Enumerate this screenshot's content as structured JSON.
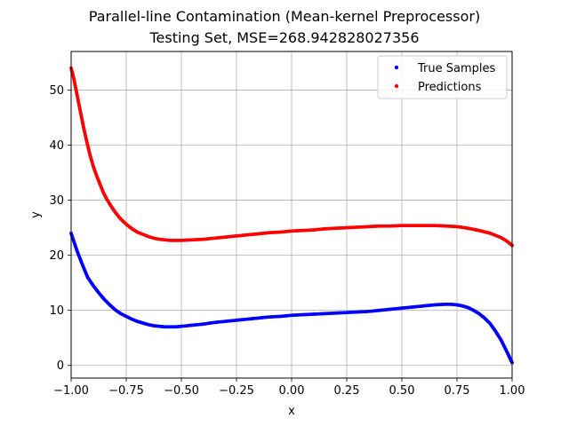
{
  "chart_data": {
    "type": "scatter",
    "title": "Parallel-line Contamination (Mean-kernel Preprocessor)",
    "subtitle": "Testing Set, MSE=268.942828027356",
    "xlabel": "x",
    "ylabel": "y",
    "xlim": [
      -1.0,
      1.0
    ],
    "ylim": [
      -2.3,
      57.0
    ],
    "xticks": [
      "−1.00",
      "−0.75",
      "−0.50",
      "−0.25",
      "0.00",
      "0.25",
      "0.50",
      "0.75",
      "1.00"
    ],
    "xtick_values": [
      -1.0,
      -0.75,
      -0.5,
      -0.25,
      0.0,
      0.25,
      0.5,
      0.75,
      1.0
    ],
    "yticks": [
      "0",
      "10",
      "20",
      "30",
      "40",
      "50"
    ],
    "ytick_values": [
      0,
      10,
      20,
      30,
      40,
      50
    ],
    "grid": true,
    "legend_position": "top-right",
    "series": [
      {
        "name": "True Samples",
        "color": "#0000ff",
        "points": [
          [
            -1.0,
            24.0
          ],
          [
            -0.975,
            21.0
          ],
          [
            -0.95,
            18.4
          ],
          [
            -0.925,
            16.0
          ],
          [
            -0.9,
            14.5
          ],
          [
            -0.875,
            13.2
          ],
          [
            -0.85,
            12.0
          ],
          [
            -0.825,
            11.0
          ],
          [
            -0.8,
            10.1
          ],
          [
            -0.775,
            9.4
          ],
          [
            -0.75,
            8.9
          ],
          [
            -0.725,
            8.4
          ],
          [
            -0.7,
            8.0
          ],
          [
            -0.675,
            7.7
          ],
          [
            -0.65,
            7.4
          ],
          [
            -0.625,
            7.2
          ],
          [
            -0.6,
            7.1
          ],
          [
            -0.575,
            7.0
          ],
          [
            -0.55,
            7.0
          ],
          [
            -0.525,
            7.0
          ],
          [
            -0.5,
            7.1
          ],
          [
            -0.45,
            7.3
          ],
          [
            -0.4,
            7.5
          ],
          [
            -0.35,
            7.8
          ],
          [
            -0.3,
            8.0
          ],
          [
            -0.25,
            8.2
          ],
          [
            -0.2,
            8.4
          ],
          [
            -0.15,
            8.6
          ],
          [
            -0.1,
            8.8
          ],
          [
            -0.05,
            8.9
          ],
          [
            0.0,
            9.1
          ],
          [
            0.05,
            9.2
          ],
          [
            0.1,
            9.3
          ],
          [
            0.15,
            9.4
          ],
          [
            0.2,
            9.5
          ],
          [
            0.25,
            9.6
          ],
          [
            0.3,
            9.7
          ],
          [
            0.35,
            9.8
          ],
          [
            0.4,
            10.0
          ],
          [
            0.45,
            10.2
          ],
          [
            0.5,
            10.4
          ],
          [
            0.55,
            10.6
          ],
          [
            0.6,
            10.8
          ],
          [
            0.65,
            11.0
          ],
          [
            0.7,
            11.1
          ],
          [
            0.725,
            11.1
          ],
          [
            0.75,
            11.0
          ],
          [
            0.775,
            10.8
          ],
          [
            0.8,
            10.5
          ],
          [
            0.825,
            10.0
          ],
          [
            0.85,
            9.4
          ],
          [
            0.875,
            8.6
          ],
          [
            0.9,
            7.6
          ],
          [
            0.925,
            6.2
          ],
          [
            0.95,
            4.6
          ],
          [
            0.975,
            2.6
          ],
          [
            1.0,
            0.5
          ]
        ]
      },
      {
        "name": "Predictions",
        "color": "#ff0000",
        "points": [
          [
            -1.0,
            54.0
          ],
          [
            -0.99,
            52.5
          ],
          [
            -0.975,
            49.5
          ],
          [
            -0.96,
            46.5
          ],
          [
            -0.945,
            43.5
          ],
          [
            -0.93,
            40.8
          ],
          [
            -0.915,
            38.3
          ],
          [
            -0.9,
            36.2
          ],
          [
            -0.885,
            34.5
          ],
          [
            -0.87,
            33.0
          ],
          [
            -0.855,
            31.5
          ],
          [
            -0.84,
            30.3
          ],
          [
            -0.82,
            29.0
          ],
          [
            -0.8,
            27.8
          ],
          [
            -0.78,
            26.8
          ],
          [
            -0.76,
            26.0
          ],
          [
            -0.74,
            25.3
          ],
          [
            -0.72,
            24.7
          ],
          [
            -0.7,
            24.2
          ],
          [
            -0.675,
            23.8
          ],
          [
            -0.65,
            23.4
          ],
          [
            -0.625,
            23.1
          ],
          [
            -0.6,
            22.9
          ],
          [
            -0.575,
            22.8
          ],
          [
            -0.55,
            22.7
          ],
          [
            -0.525,
            22.7
          ],
          [
            -0.5,
            22.7
          ],
          [
            -0.45,
            22.8
          ],
          [
            -0.4,
            22.9
          ],
          [
            -0.35,
            23.1
          ],
          [
            -0.3,
            23.3
          ],
          [
            -0.25,
            23.5
          ],
          [
            -0.2,
            23.7
          ],
          [
            -0.15,
            23.9
          ],
          [
            -0.1,
            24.1
          ],
          [
            -0.05,
            24.2
          ],
          [
            0.0,
            24.4
          ],
          [
            0.05,
            24.5
          ],
          [
            0.1,
            24.6
          ],
          [
            0.15,
            24.8
          ],
          [
            0.2,
            24.9
          ],
          [
            0.25,
            25.0
          ],
          [
            0.3,
            25.1
          ],
          [
            0.35,
            25.2
          ],
          [
            0.4,
            25.3
          ],
          [
            0.45,
            25.3
          ],
          [
            0.5,
            25.4
          ],
          [
            0.55,
            25.4
          ],
          [
            0.6,
            25.4
          ],
          [
            0.65,
            25.4
          ],
          [
            0.7,
            25.3
          ],
          [
            0.75,
            25.2
          ],
          [
            0.8,
            24.9
          ],
          [
            0.85,
            24.5
          ],
          [
            0.9,
            24.0
          ],
          [
            0.925,
            23.6
          ],
          [
            0.95,
            23.2
          ],
          [
            0.975,
            22.6
          ],
          [
            1.0,
            21.8
          ]
        ]
      }
    ]
  }
}
